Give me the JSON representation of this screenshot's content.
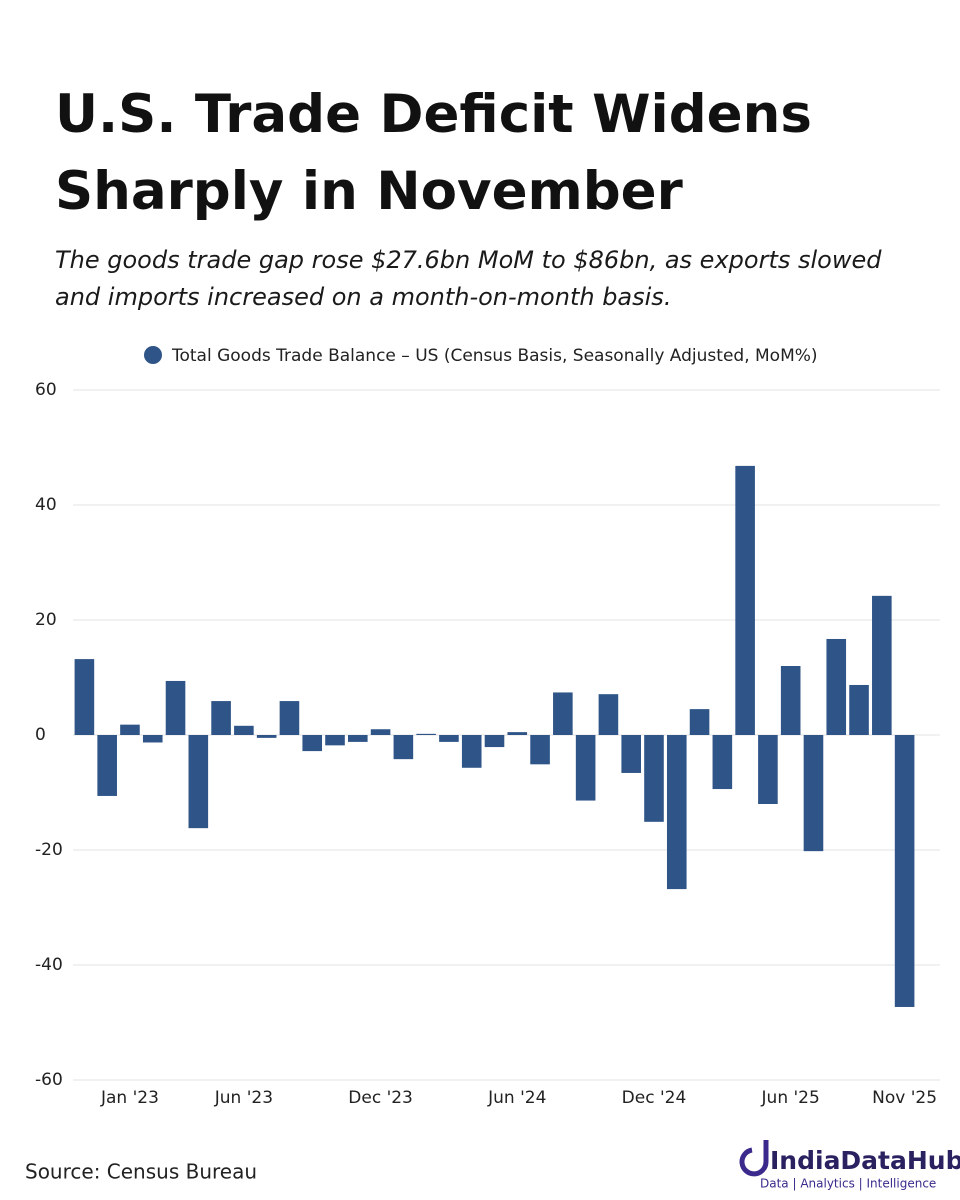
{
  "chart_data": {
    "type": "bar",
    "title": [
      "U.S. Trade Deficit Widens",
      "Sharply in November"
    ],
    "subtitle": [
      "The goods trade gap rose $27.6bn MoM to $86bn, as exports slowed",
      "and imports increased on a month-on-month basis."
    ],
    "categories": [
      null,
      null,
      "Jan '23",
      null,
      null,
      null,
      null,
      "Jun '23",
      null,
      null,
      null,
      null,
      null,
      "Dec '23",
      null,
      null,
      null,
      null,
      null,
      "Jun '24",
      null,
      null,
      null,
      null,
      null,
      "Dec '24",
      null,
      null,
      null,
      null,
      null,
      "Jun '25",
      null,
      null,
      null,
      null,
      "Nov '25"
    ],
    "series": [
      {
        "name": "Total Goods Trade Balance – US (Census Basis, Seasonally Adjusted, MoM%)",
        "color": "#2f5487",
        "values": [
          13.2,
          -10.6,
          1.8,
          -1.3,
          9.4,
          -16.2,
          5.9,
          1.6,
          -0.5,
          5.9,
          -2.8,
          -1.8,
          -1.2,
          1.0,
          -4.2,
          0.2,
          -1.2,
          -5.7,
          -2.1,
          0.5,
          -5.1,
          7.4,
          -11.4,
          7.1,
          -6.6,
          -15.1,
          -26.8,
          4.5,
          -9.4,
          46.8,
          -12.0,
          12.0,
          -20.2,
          16.7,
          8.7,
          24.2,
          -47.3
        ]
      }
    ],
    "ylim": [
      -60,
      60
    ],
    "yticks": [
      -60,
      -40,
      -20,
      0,
      20,
      40,
      60
    ],
    "grid": true,
    "source": "Source: Census Bureau",
    "brand": {
      "name": "IndiaDataHub",
      "tagline": "Data | Analytics | Intelligence"
    }
  }
}
